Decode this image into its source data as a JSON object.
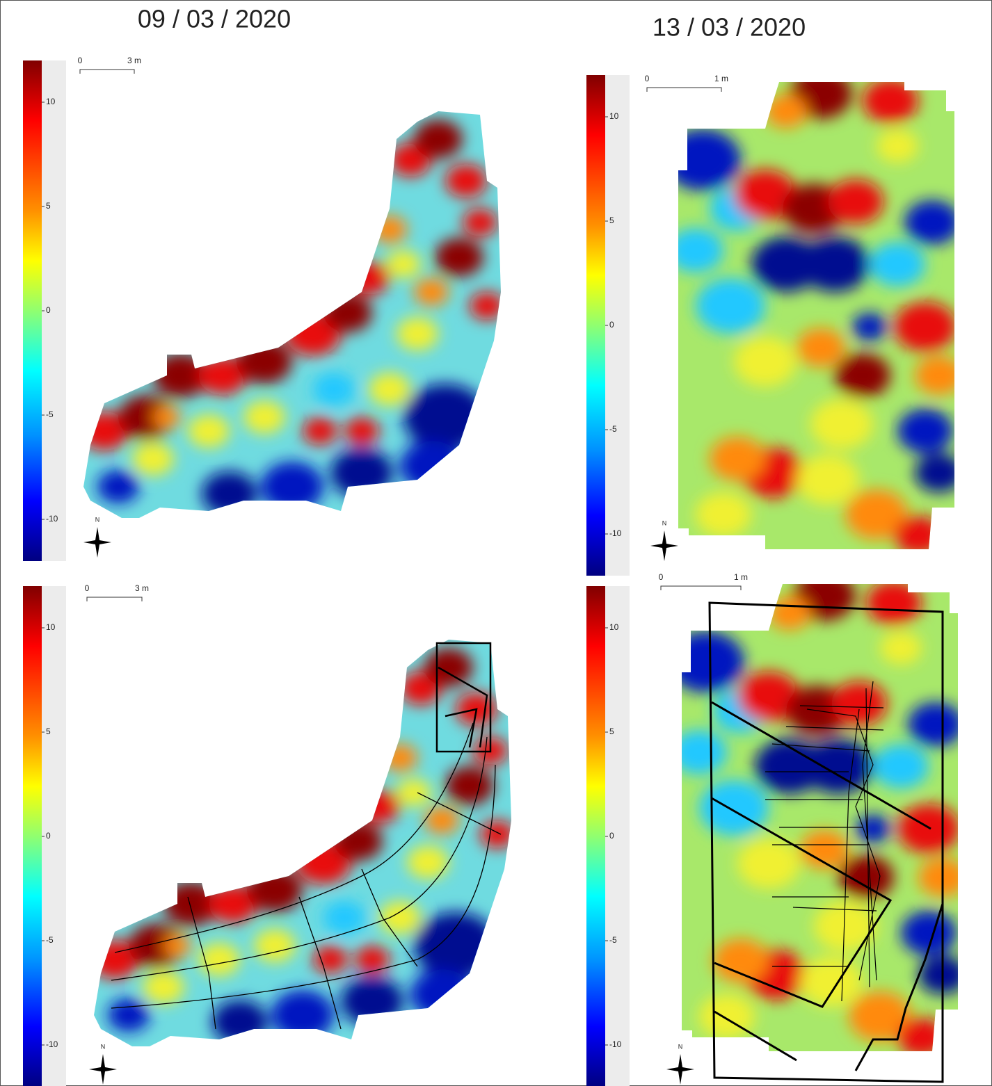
{
  "dates": [
    "09 / 03 / 2020",
    "13 / 03 / 2020"
  ],
  "panels": [
    {
      "colorbar": {
        "range": [
          -12,
          12
        ],
        "ticks": [
          10,
          5,
          0,
          -5,
          -10
        ]
      },
      "scale": {
        "start": "0",
        "end": "3 m"
      },
      "north": "N"
    },
    {
      "colorbar": {
        "range": [
          -12,
          12
        ],
        "ticks": [
          10,
          5,
          0,
          -5,
          -10
        ]
      },
      "scale": {
        "start": "0",
        "end": "1 m"
      },
      "north": "N"
    },
    {
      "colorbar": {
        "range": [
          -12,
          12
        ],
        "ticks": [
          10,
          5,
          0,
          -5,
          -10
        ]
      },
      "scale": {
        "start": "0",
        "end": "3 m"
      },
      "north": "N"
    },
    {
      "colorbar": {
        "range": [
          -12,
          12
        ],
        "ticks": [
          10,
          5,
          0,
          -5,
          -10
        ]
      },
      "scale": {
        "start": "0",
        "end": "1 m"
      },
      "north": "N"
    }
  ]
}
